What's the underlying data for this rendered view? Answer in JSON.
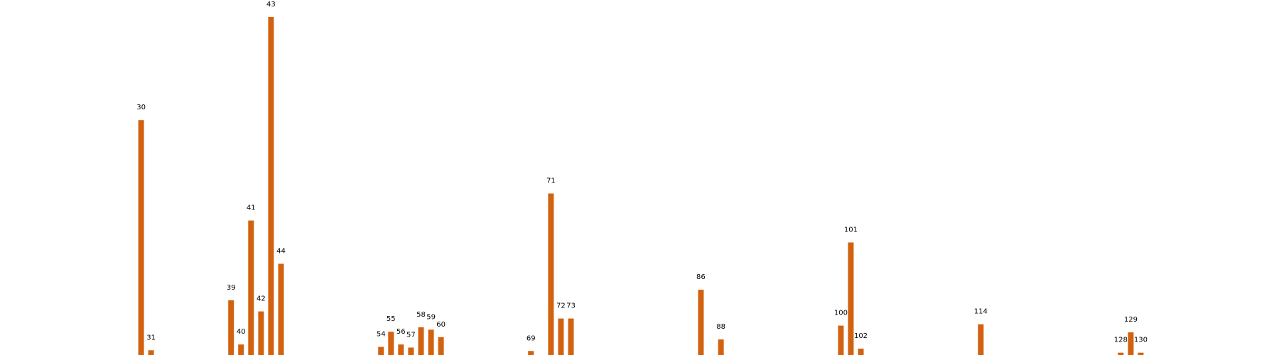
{
  "colors": {
    "bar": "#d2620f",
    "background": "#ffffff",
    "label": "#000000"
  },
  "chart_data": {
    "type": "bar",
    "title": "",
    "xlabel": "",
    "ylabel": "",
    "axes_visible": false,
    "grid": false,
    "x_range": [
      22,
      138
    ],
    "ylim": [
      0,
      100
    ],
    "bars": [
      {
        "label": "30",
        "x": 30,
        "value": 69.5
      },
      {
        "label": "31",
        "x": 31,
        "value": 1.4
      },
      {
        "label": "39",
        "x": 39,
        "value": 16.2
      },
      {
        "label": "40",
        "x": 40,
        "value": 3.1
      },
      {
        "label": "41",
        "x": 41,
        "value": 39.8
      },
      {
        "label": "42",
        "x": 42,
        "value": 12.9
      },
      {
        "label": "43",
        "x": 43,
        "value": 100.0
      },
      {
        "label": "44",
        "x": 44,
        "value": 27.0
      },
      {
        "label": "54",
        "x": 54,
        "value": 2.4
      },
      {
        "label": "55",
        "x": 55,
        "value": 6.9
      },
      {
        "label": "56",
        "x": 56,
        "value": 3.1
      },
      {
        "label": "57",
        "x": 57,
        "value": 2.2
      },
      {
        "label": "58",
        "x": 58,
        "value": 8.2
      },
      {
        "label": "59",
        "x": 59,
        "value": 7.5
      },
      {
        "label": "60",
        "x": 60,
        "value": 5.3
      },
      {
        "label": "69",
        "x": 69,
        "value": 1.2
      },
      {
        "label": "71",
        "x": 71,
        "value": 47.8
      },
      {
        "label": "72",
        "x": 72,
        "value": 10.8
      },
      {
        "label": "73",
        "x": 73,
        "value": 10.8
      },
      {
        "label": "86",
        "x": 86,
        "value": 19.3
      },
      {
        "label": "88",
        "x": 88,
        "value": 4.6
      },
      {
        "label": "100",
        "x": 100,
        "value": 8.7
      },
      {
        "label": "101",
        "x": 101,
        "value": 33.3
      },
      {
        "label": "102",
        "x": 102,
        "value": 1.9
      },
      {
        "label": "114",
        "x": 114,
        "value": 9.1
      },
      {
        "label": "128",
        "x": 128,
        "value": 0.7
      },
      {
        "label": "129",
        "x": 129,
        "value": 6.7
      },
      {
        "label": "130",
        "x": 130,
        "value": 0.7
      }
    ]
  }
}
